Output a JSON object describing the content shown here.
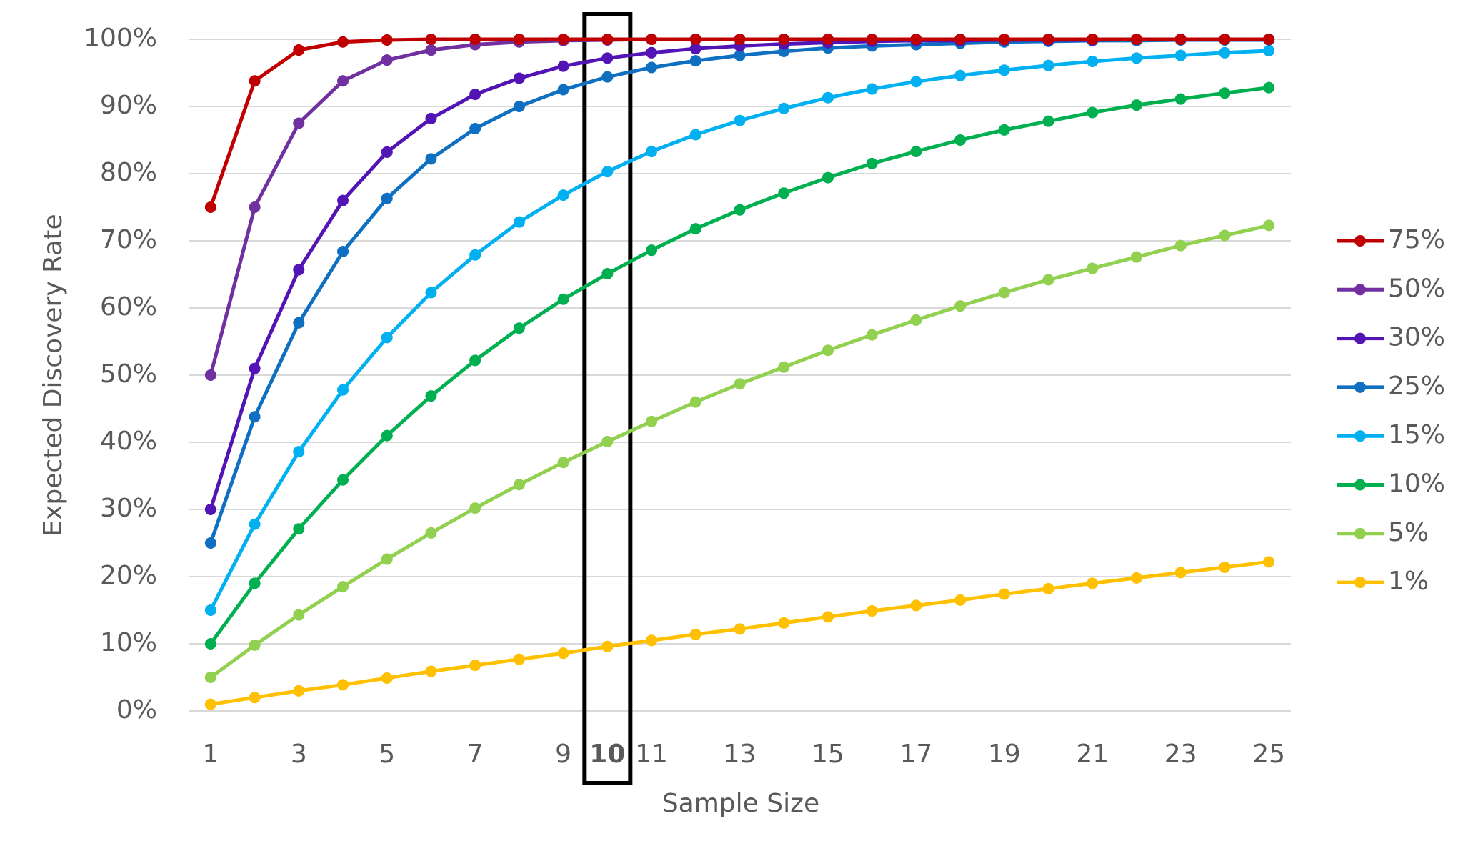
{
  "chart_data": {
    "type": "line",
    "x_label": "Sample Size",
    "y_label": "Expected Discovery Rate",
    "x": [
      1,
      2,
      3,
      4,
      5,
      6,
      7,
      8,
      9,
      10,
      11,
      12,
      13,
      14,
      15,
      16,
      17,
      18,
      19,
      20,
      21,
      22,
      23,
      24,
      25
    ],
    "xlim": [
      0.5,
      25.5
    ],
    "xticks": [
      1,
      3,
      5,
      7,
      9,
      10,
      11,
      13,
      15,
      17,
      19,
      21,
      23,
      25
    ],
    "highlight_x": 10,
    "ylim": [
      0,
      100
    ],
    "yticks": [
      {
        "value": 0,
        "label": "0%"
      },
      {
        "value": 10,
        "label": "10%"
      },
      {
        "value": 20,
        "label": "20%"
      },
      {
        "value": 30,
        "label": "30%"
      },
      {
        "value": 40,
        "label": "40%"
      },
      {
        "value": 50,
        "label": "50%"
      },
      {
        "value": 60,
        "label": "60%"
      },
      {
        "value": 70,
        "label": "70%"
      },
      {
        "value": 80,
        "label": "80%"
      },
      {
        "value": 90,
        "label": "90%"
      },
      {
        "value": 100,
        "label": "100%"
      }
    ],
    "grid": true,
    "legend": "right",
    "series": [
      {
        "name": "75%",
        "color": "#c00000",
        "values": [
          75,
          93.8,
          98.4,
          99.6,
          99.9,
          100,
          100,
          100,
          100,
          100,
          100,
          100,
          100,
          100,
          100,
          100,
          100,
          100,
          100,
          100,
          100,
          100,
          100,
          100,
          100
        ]
      },
      {
        "name": "50%",
        "color": "#7030a0",
        "values": [
          50,
          75,
          87.5,
          93.8,
          96.9,
          98.4,
          99.2,
          99.6,
          99.8,
          99.9,
          100,
          100,
          100,
          100,
          100,
          100,
          100,
          100,
          100,
          100,
          100,
          100,
          100,
          100,
          100
        ]
      },
      {
        "name": "30%",
        "color": "#5214b4",
        "values": [
          30,
          51,
          65.7,
          76,
          83.2,
          88.2,
          91.8,
          94.2,
          96,
          97.2,
          98,
          98.6,
          99,
          99.3,
          99.5,
          99.7,
          99.8,
          99.8,
          99.9,
          99.9,
          99.9,
          100,
          100,
          100,
          100
        ]
      },
      {
        "name": "25%",
        "color": "#0f6fc0",
        "values": [
          25,
          43.8,
          57.8,
          68.4,
          76.3,
          82.2,
          86.7,
          90,
          92.5,
          94.4,
          95.8,
          96.8,
          97.6,
          98.2,
          98.7,
          99,
          99.2,
          99.4,
          99.6,
          99.7,
          99.8,
          99.8,
          99.9,
          99.9,
          99.9
        ]
      },
      {
        "name": "15%",
        "color": "#00b0f0",
        "values": [
          15,
          27.8,
          38.6,
          47.8,
          55.6,
          62.3,
          67.9,
          72.8,
          76.8,
          80.3,
          83.3,
          85.8,
          87.9,
          89.7,
          91.3,
          92.6,
          93.7,
          94.6,
          95.4,
          96.1,
          96.7,
          97.2,
          97.6,
          98,
          98.3
        ]
      },
      {
        "name": "10%",
        "color": "#00b050",
        "values": [
          10,
          19,
          27.1,
          34.4,
          41,
          46.9,
          52.2,
          57,
          61.3,
          65.1,
          68.6,
          71.8,
          74.6,
          77.1,
          79.4,
          81.5,
          83.3,
          85,
          86.5,
          87.8,
          89.1,
          90.2,
          91.1,
          92,
          92.8
        ]
      },
      {
        "name": "5%",
        "color": "#92d050",
        "values": [
          5,
          9.8,
          14.3,
          18.5,
          22.6,
          26.5,
          30.2,
          33.7,
          37,
          40.1,
          43.1,
          46,
          48.7,
          51.2,
          53.7,
          56,
          58.2,
          60.3,
          62.3,
          64.2,
          65.9,
          67.6,
          69.3,
          70.8,
          72.3
        ]
      },
      {
        "name": "1%",
        "color": "#ffc000",
        "values": [
          1,
          2,
          3,
          3.9,
          4.9,
          5.9,
          6.8,
          7.7,
          8.6,
          9.6,
          10.5,
          11.4,
          12.2,
          13.1,
          14,
          14.9,
          15.7,
          16.5,
          17.4,
          18.2,
          19,
          19.8,
          20.6,
          21.4,
          22.2
        ]
      }
    ]
  }
}
